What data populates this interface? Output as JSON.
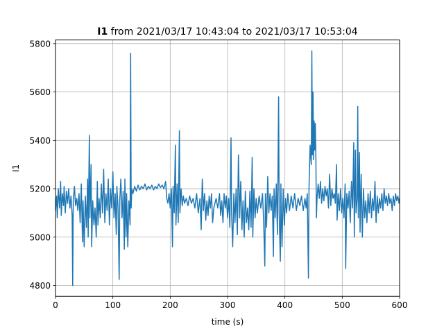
{
  "chart_data": {
    "type": "line",
    "title_bold": "I1",
    "title_rest": " from 2021/03/17 10:43:04 to 2021/03/17 10:53:04",
    "xlabel": "time (s)",
    "ylabel": "I1",
    "xlim": [
      0,
      600
    ],
    "ylim": [
      4755,
      5815
    ],
    "xticks": [
      0,
      100,
      200,
      300,
      400,
      500,
      600
    ],
    "yticks": [
      4800,
      5000,
      5200,
      5400,
      5600,
      5800
    ],
    "grid": true,
    "color": "#1f77b4",
    "series": [
      {
        "points": [
          [
            0,
            5110
          ],
          [
            2,
            5170
          ],
          [
            3,
            5080
          ],
          [
            5,
            5200
          ],
          [
            7,
            5120
          ],
          [
            9,
            5230
          ],
          [
            10,
            5090
          ],
          [
            12,
            5180
          ],
          [
            14,
            5130
          ],
          [
            15,
            5210
          ],
          [
            17,
            5100
          ],
          [
            19,
            5190
          ],
          [
            21,
            5140
          ],
          [
            23,
            5200
          ],
          [
            25,
            5120
          ],
          [
            27,
            5170
          ],
          [
            29,
            5090
          ],
          [
            30,
            4800
          ],
          [
            31,
            5150
          ],
          [
            33,
            5210
          ],
          [
            35,
            5130
          ],
          [
            37,
            5160
          ],
          [
            39,
            5110
          ],
          [
            41,
            5180
          ],
          [
            43,
            5060
          ],
          [
            45,
            5220
          ],
          [
            47,
            4980
          ],
          [
            48,
            5150
          ],
          [
            50,
            4960
          ],
          [
            52,
            5170
          ],
          [
            54,
            5040
          ],
          [
            56,
            5240
          ],
          [
            57,
            5000
          ],
          [
            59,
            5420
          ],
          [
            60,
            5080
          ],
          [
            62,
            5300
          ],
          [
            63,
            4960
          ],
          [
            65,
            5150
          ],
          [
            67,
            5050
          ],
          [
            69,
            5120
          ],
          [
            71,
            5000
          ],
          [
            73,
            5230
          ],
          [
            74,
            5050
          ],
          [
            76,
            5160
          ],
          [
            78,
            5080
          ],
          [
            80,
            5220
          ],
          [
            82,
            5100
          ],
          [
            84,
            5280
          ],
          [
            86,
            5060
          ],
          [
            88,
            5180
          ],
          [
            90,
            5110
          ],
          [
            92,
            5240
          ],
          [
            94,
            5050
          ],
          [
            96,
            5200
          ],
          [
            98,
            5120
          ],
          [
            100,
            5270
          ],
          [
            102,
            5080
          ],
          [
            104,
            5180
          ],
          [
            106,
            5010
          ],
          [
            107,
            5210
          ],
          [
            109,
            5120
          ],
          [
            111,
            4825
          ],
          [
            112,
            5150
          ],
          [
            114,
            5240
          ],
          [
            116,
            5080
          ],
          [
            118,
            5190
          ],
          [
            120,
            4950
          ],
          [
            121,
            5240
          ],
          [
            123,
            5000
          ],
          [
            124,
            5180
          ],
          [
            126,
            4960
          ],
          [
            128,
            5150
          ],
          [
            130,
            5050
          ],
          [
            131,
            5760
          ],
          [
            132,
            5120
          ],
          [
            133,
            5200
          ],
          [
            135,
            5180
          ],
          [
            138,
            5210
          ],
          [
            141,
            5190
          ],
          [
            144,
            5215
          ],
          [
            147,
            5195
          ],
          [
            150,
            5210
          ],
          [
            153,
            5200
          ],
          [
            156,
            5220
          ],
          [
            159,
            5195
          ],
          [
            162,
            5210
          ],
          [
            165,
            5200
          ],
          [
            168,
            5215
          ],
          [
            171,
            5195
          ],
          [
            174,
            5210
          ],
          [
            177,
            5200
          ],
          [
            180,
            5220
          ],
          [
            183,
            5205
          ],
          [
            186,
            5215
          ],
          [
            189,
            5200
          ],
          [
            192,
            5230
          ],
          [
            194,
            5160
          ],
          [
            196,
            5140
          ],
          [
            198,
            5180
          ],
          [
            200,
            5120
          ],
          [
            202,
            5200
          ],
          [
            204,
            4960
          ],
          [
            205,
            5210
          ],
          [
            207,
            5100
          ],
          [
            209,
            5380
          ],
          [
            210,
            5050
          ],
          [
            212,
            5220
          ],
          [
            214,
            5060
          ],
          [
            216,
            5440
          ],
          [
            217,
            5100
          ],
          [
            219,
            5200
          ],
          [
            221,
            5130
          ],
          [
            223,
            5170
          ],
          [
            225,
            5140
          ],
          [
            228,
            5160
          ],
          [
            231,
            5130
          ],
          [
            234,
            5170
          ],
          [
            237,
            5140
          ],
          [
            240,
            5160
          ],
          [
            243,
            5120
          ],
          [
            246,
            5180
          ],
          [
            249,
            5100
          ],
          [
            252,
            5160
          ],
          [
            254,
            5030
          ],
          [
            256,
            5240
          ],
          [
            258,
            5110
          ],
          [
            260,
            5180
          ],
          [
            262,
            5070
          ],
          [
            264,
            5150
          ],
          [
            266,
            5090
          ],
          [
            268,
            5170
          ],
          [
            270,
            5120
          ],
          [
            272,
            5180
          ],
          [
            274,
            5060
          ],
          [
            276,
            5120
          ],
          [
            278,
            5140
          ],
          [
            280,
            5160
          ],
          [
            283,
            5120
          ],
          [
            286,
            5180
          ],
          [
            288,
            5090
          ],
          [
            290,
            5150
          ],
          [
            292,
            5060
          ],
          [
            294,
            5180
          ],
          [
            296,
            5120
          ],
          [
            298,
            5170
          ],
          [
            300,
            5080
          ],
          [
            302,
            5160
          ],
          [
            304,
            5040
          ],
          [
            306,
            5410
          ],
          [
            307,
            5100
          ],
          [
            309,
            4960
          ],
          [
            311,
            5180
          ],
          [
            313,
            5060
          ],
          [
            315,
            5200
          ],
          [
            317,
            5010
          ],
          [
            319,
            5340
          ],
          [
            321,
            5080
          ],
          [
            323,
            5230
          ],
          [
            325,
            5030
          ],
          [
            327,
            5150
          ],
          [
            329,
            5000
          ],
          [
            331,
            5190
          ],
          [
            333,
            5060
          ],
          [
            335,
            5120
          ],
          [
            337,
            5030
          ],
          [
            339,
            5190
          ],
          [
            341,
            5040
          ],
          [
            343,
            5330
          ],
          [
            344,
            5000
          ],
          [
            346,
            5200
          ],
          [
            348,
            5080
          ],
          [
            350,
            5160
          ],
          [
            352,
            5100
          ],
          [
            355,
            5170
          ],
          [
            358,
            5120
          ],
          [
            361,
            5180
          ],
          [
            363,
            5060
          ],
          [
            365,
            4880
          ],
          [
            366,
            5180
          ],
          [
            368,
            5040
          ],
          [
            370,
            5250
          ],
          [
            372,
            5100
          ],
          [
            374,
            5180
          ],
          [
            376,
            5110
          ],
          [
            378,
            5170
          ],
          [
            380,
            4920
          ],
          [
            381,
            5200
          ],
          [
            383,
            5080
          ],
          [
            385,
            5220
          ],
          [
            387,
            5010
          ],
          [
            389,
            5580
          ],
          [
            390,
            5100
          ],
          [
            392,
            4900
          ],
          [
            393,
            5220
          ],
          [
            395,
            4960
          ],
          [
            397,
            5200
          ],
          [
            399,
            5050
          ],
          [
            401,
            5160
          ],
          [
            403,
            5100
          ],
          [
            405,
            5180
          ],
          [
            408,
            5110
          ],
          [
            411,
            5170
          ],
          [
            414,
            5120
          ],
          [
            417,
            5180
          ],
          [
            420,
            5110
          ],
          [
            423,
            5160
          ],
          [
            426,
            5130
          ],
          [
            429,
            5170
          ],
          [
            432,
            5110
          ],
          [
            435,
            5160
          ],
          [
            437,
            5120
          ],
          [
            439,
            5180
          ],
          [
            441,
            4830
          ],
          [
            442,
            5200
          ],
          [
            444,
            5380
          ],
          [
            446,
            5300
          ],
          [
            447,
            5770
          ],
          [
            448,
            5340
          ],
          [
            449,
            5600
          ],
          [
            450,
            5320
          ],
          [
            451,
            5480
          ],
          [
            452,
            5360
          ],
          [
            453,
            5470
          ],
          [
            454,
            5330
          ],
          [
            455,
            5080
          ],
          [
            456,
            5160
          ],
          [
            458,
            5220
          ],
          [
            460,
            5160
          ],
          [
            462,
            5230
          ],
          [
            464,
            5140
          ],
          [
            466,
            5200
          ],
          [
            468,
            5150
          ],
          [
            470,
            5210
          ],
          [
            472,
            5170
          ],
          [
            474,
            5200
          ],
          [
            476,
            5120
          ],
          [
            478,
            5260
          ],
          [
            480,
            5130
          ],
          [
            482,
            5200
          ],
          [
            484,
            5160
          ],
          [
            486,
            5180
          ],
          [
            488,
            5140
          ],
          [
            490,
            5300
          ],
          [
            491,
            5070
          ],
          [
            493,
            5180
          ],
          [
            495,
            5110
          ],
          [
            497,
            5200
          ],
          [
            499,
            5100
          ],
          [
            501,
            5160
          ],
          [
            503,
            5080
          ],
          [
            505,
            5220
          ],
          [
            506,
            4870
          ],
          [
            508,
            5180
          ],
          [
            510,
            5120
          ],
          [
            512,
            5190
          ],
          [
            514,
            5060
          ],
          [
            516,
            5230
          ],
          [
            518,
            5120
          ],
          [
            520,
            5390
          ],
          [
            521,
            5000
          ],
          [
            523,
            5360
          ],
          [
            524,
            5100
          ],
          [
            526,
            5160
          ],
          [
            527,
            5540
          ],
          [
            528,
            5080
          ],
          [
            530,
            5350
          ],
          [
            531,
            5020
          ],
          [
            533,
            5260
          ],
          [
            535,
            5000
          ],
          [
            537,
            5200
          ],
          [
            539,
            5080
          ],
          [
            541,
            5150
          ],
          [
            543,
            5060
          ],
          [
            545,
            5180
          ],
          [
            547,
            5100
          ],
          [
            549,
            5190
          ],
          [
            551,
            5080
          ],
          [
            553,
            5160
          ],
          [
            555,
            5110
          ],
          [
            557,
            5230
          ],
          [
            559,
            5060
          ],
          [
            561,
            5170
          ],
          [
            563,
            5100
          ],
          [
            565,
            5160
          ],
          [
            567,
            5120
          ],
          [
            569,
            5180
          ],
          [
            571,
            5110
          ],
          [
            573,
            5200
          ],
          [
            575,
            5140
          ],
          [
            577,
            5170
          ],
          [
            579,
            5130
          ],
          [
            581,
            5180
          ],
          [
            583,
            5140
          ],
          [
            585,
            5160
          ],
          [
            587,
            5110
          ],
          [
            589,
            5170
          ],
          [
            591,
            5130
          ],
          [
            593,
            5180
          ],
          [
            595,
            5150
          ],
          [
            597,
            5170
          ],
          [
            599,
            5140
          ],
          [
            600,
            5160
          ]
        ]
      }
    ]
  }
}
